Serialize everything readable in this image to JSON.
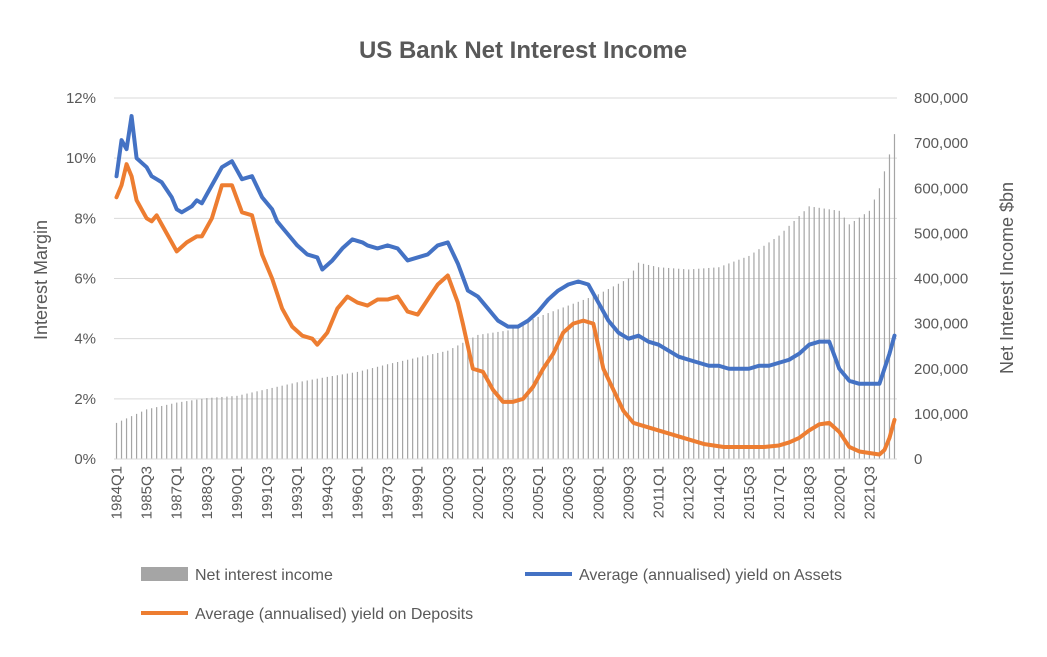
{
  "chart_data": {
    "type": "bar+line",
    "title": "US Bank Net Interest Income",
    "ylabel_left": "Interest Margin",
    "ylabel_right": "Net Interest Income $bn",
    "y_left_range": [
      0,
      12
    ],
    "y_left_ticks": [
      "0%",
      "2%",
      "4%",
      "6%",
      "8%",
      "10%",
      "12%"
    ],
    "y_right_range": [
      0,
      800000
    ],
    "y_right_ticks": [
      "0",
      "100,000",
      "200,000",
      "300,000",
      "400,000",
      "500,000",
      "600,000",
      "700,000",
      "800,000"
    ],
    "x_range": [
      "1984Q1",
      "2022Q4"
    ],
    "x_tick_labels": [
      "1984Q1",
      "1985Q3",
      "1987Q1",
      "1988Q3",
      "1990Q1",
      "1991Q3",
      "1993Q1",
      "1994Q3",
      "1996Q1",
      "1997Q3",
      "1999Q1",
      "2000Q3",
      "2002Q1",
      "2003Q3",
      "2005Q1",
      "2006Q3",
      "2008Q1",
      "2009Q3",
      "2011Q1",
      "2012Q3",
      "2014Q1",
      "2015Q3",
      "2017Q1",
      "2018Q3",
      "2020Q1",
      "2021Q3"
    ],
    "grid": true,
    "legend_position": "bottom",
    "series": [
      {
        "name": "Net interest income",
        "type": "bar",
        "axis": "right",
        "color": "#a5a5a5",
        "points": [
          [
            "1984Q1",
            80000
          ],
          [
            "1985Q3",
            110000
          ],
          [
            "1987Q1",
            125000
          ],
          [
            "1988Q3",
            135000
          ],
          [
            "1990Q1",
            140000
          ],
          [
            "1991Q3",
            155000
          ],
          [
            "1993Q1",
            170000
          ],
          [
            "1994Q3",
            182000
          ],
          [
            "1996Q1",
            193000
          ],
          [
            "1997Q3",
            210000
          ],
          [
            "1999Q1",
            225000
          ],
          [
            "2000Q3",
            240000
          ],
          [
            "2002Q1",
            275000
          ],
          [
            "2003Q3",
            285000
          ],
          [
            "2005Q1",
            315000
          ],
          [
            "2006Q3",
            340000
          ],
          [
            "2008Q1",
            365000
          ],
          [
            "2009Q3",
            400000
          ],
          [
            "2010Q1",
            435000
          ],
          [
            "2011Q1",
            425000
          ],
          [
            "2012Q3",
            420000
          ],
          [
            "2014Q1",
            425000
          ],
          [
            "2015Q3",
            450000
          ],
          [
            "2017Q1",
            495000
          ],
          [
            "2018Q3",
            560000
          ],
          [
            "2020Q1",
            550000
          ],
          [
            "2020Q3",
            520000
          ],
          [
            "2021Q3",
            550000
          ],
          [
            "2022Q1",
            600000
          ],
          [
            "2022Q3",
            675000
          ],
          [
            "2022Q4",
            720000
          ]
        ]
      },
      {
        "name": "Average (annualised) yield on Assets",
        "type": "line",
        "axis": "left",
        "color": "#4472c4",
        "points": [
          [
            "1984Q1",
            9.4
          ],
          [
            "1984Q2",
            10.6
          ],
          [
            "1984Q3",
            10.3
          ],
          [
            "1984Q4",
            11.4
          ],
          [
            "1985Q1",
            10.0
          ],
          [
            "1985Q3",
            9.7
          ],
          [
            "1985Q4",
            9.4
          ],
          [
            "1986Q2",
            9.2
          ],
          [
            "1986Q4",
            8.7
          ],
          [
            "1987Q1",
            8.3
          ],
          [
            "1987Q2",
            8.2
          ],
          [
            "1987Q4",
            8.4
          ],
          [
            "1988Q1",
            8.6
          ],
          [
            "1988Q2",
            8.5
          ],
          [
            "1988Q4",
            9.1
          ],
          [
            "1989Q2",
            9.7
          ],
          [
            "1989Q4",
            9.9
          ],
          [
            "1990Q2",
            9.3
          ],
          [
            "1990Q4",
            9.4
          ],
          [
            "1991Q2",
            8.7
          ],
          [
            "1991Q4",
            8.3
          ],
          [
            "1992Q1",
            7.9
          ],
          [
            "1992Q3",
            7.5
          ],
          [
            "1993Q1",
            7.1
          ],
          [
            "1993Q3",
            6.8
          ],
          [
            "1994Q1",
            6.7
          ],
          [
            "1994Q2",
            6.3
          ],
          [
            "1994Q4",
            6.6
          ],
          [
            "1995Q2",
            7.0
          ],
          [
            "1995Q4",
            7.3
          ],
          [
            "1996Q2",
            7.2
          ],
          [
            "1996Q3",
            7.1
          ],
          [
            "1997Q1",
            7.0
          ],
          [
            "1997Q3",
            7.1
          ],
          [
            "1998Q1",
            7.0
          ],
          [
            "1998Q3",
            6.6
          ],
          [
            "1999Q1",
            6.7
          ],
          [
            "1999Q3",
            6.8
          ],
          [
            "2000Q1",
            7.1
          ],
          [
            "2000Q3",
            7.2
          ],
          [
            "2001Q1",
            6.5
          ],
          [
            "2001Q3",
            5.6
          ],
          [
            "2002Q1",
            5.4
          ],
          [
            "2002Q3",
            5.0
          ],
          [
            "2003Q1",
            4.6
          ],
          [
            "2003Q3",
            4.4
          ],
          [
            "2004Q1",
            4.4
          ],
          [
            "2004Q3",
            4.6
          ],
          [
            "2005Q1",
            4.9
          ],
          [
            "2005Q3",
            5.3
          ],
          [
            "2006Q1",
            5.6
          ],
          [
            "2006Q3",
            5.8
          ],
          [
            "2007Q1",
            5.9
          ],
          [
            "2007Q3",
            5.8
          ],
          [
            "2008Q1",
            5.2
          ],
          [
            "2008Q3",
            4.6
          ],
          [
            "2009Q1",
            4.2
          ],
          [
            "2009Q3",
            4.0
          ],
          [
            "2010Q1",
            4.1
          ],
          [
            "2010Q3",
            3.9
          ],
          [
            "2011Q1",
            3.8
          ],
          [
            "2011Q3",
            3.6
          ],
          [
            "2012Q1",
            3.4
          ],
          [
            "2012Q3",
            3.3
          ],
          [
            "2013Q1",
            3.2
          ],
          [
            "2013Q3",
            3.1
          ],
          [
            "2014Q1",
            3.1
          ],
          [
            "2014Q3",
            3.0
          ],
          [
            "2015Q1",
            3.0
          ],
          [
            "2015Q3",
            3.0
          ],
          [
            "2016Q1",
            3.1
          ],
          [
            "2016Q3",
            3.1
          ],
          [
            "2017Q1",
            3.2
          ],
          [
            "2017Q3",
            3.3
          ],
          [
            "2018Q1",
            3.5
          ],
          [
            "2018Q3",
            3.8
          ],
          [
            "2019Q1",
            3.9
          ],
          [
            "2019Q3",
            3.9
          ],
          [
            "2020Q1",
            3.0
          ],
          [
            "2020Q3",
            2.6
          ],
          [
            "2021Q1",
            2.5
          ],
          [
            "2021Q3",
            2.5
          ],
          [
            "2022Q1",
            2.5
          ],
          [
            "2022Q2",
            3.0
          ],
          [
            "2022Q3",
            3.5
          ],
          [
            "2022Q4",
            4.1
          ]
        ]
      },
      {
        "name": "Average (annualised) yield on Deposits",
        "type": "line",
        "axis": "left",
        "color": "#ed7d31",
        "points": [
          [
            "1984Q1",
            8.7
          ],
          [
            "1984Q2",
            9.1
          ],
          [
            "1984Q3",
            9.8
          ],
          [
            "1984Q4",
            9.4
          ],
          [
            "1985Q1",
            8.6
          ],
          [
            "1985Q3",
            8.0
          ],
          [
            "1985Q4",
            7.9
          ],
          [
            "1986Q1",
            8.1
          ],
          [
            "1986Q3",
            7.5
          ],
          [
            "1987Q1",
            6.9
          ],
          [
            "1987Q3",
            7.2
          ],
          [
            "1988Q1",
            7.4
          ],
          [
            "1988Q2",
            7.4
          ],
          [
            "1988Q4",
            8.0
          ],
          [
            "1989Q2",
            9.1
          ],
          [
            "1989Q4",
            9.1
          ],
          [
            "1990Q2",
            8.2
          ],
          [
            "1990Q4",
            8.1
          ],
          [
            "1991Q2",
            6.8
          ],
          [
            "1991Q4",
            6.0
          ],
          [
            "1992Q2",
            5.0
          ],
          [
            "1992Q4",
            4.4
          ],
          [
            "1993Q2",
            4.1
          ],
          [
            "1993Q4",
            4.0
          ],
          [
            "1994Q1",
            3.8
          ],
          [
            "1994Q3",
            4.2
          ],
          [
            "1995Q1",
            5.0
          ],
          [
            "1995Q3",
            5.4
          ],
          [
            "1996Q1",
            5.2
          ],
          [
            "1996Q3",
            5.1
          ],
          [
            "1997Q1",
            5.3
          ],
          [
            "1997Q3",
            5.3
          ],
          [
            "1998Q1",
            5.4
          ],
          [
            "1998Q3",
            4.9
          ],
          [
            "1999Q1",
            4.8
          ],
          [
            "1999Q3",
            5.3
          ],
          [
            "2000Q1",
            5.8
          ],
          [
            "2000Q3",
            6.1
          ],
          [
            "2001Q1",
            5.2
          ],
          [
            "2001Q2",
            4.5
          ],
          [
            "2001Q4",
            3.0
          ],
          [
            "2002Q2",
            2.9
          ],
          [
            "2002Q4",
            2.3
          ],
          [
            "2003Q2",
            1.9
          ],
          [
            "2003Q4",
            1.9
          ],
          [
            "2004Q2",
            2.0
          ],
          [
            "2004Q4",
            2.4
          ],
          [
            "2005Q2",
            3.0
          ],
          [
            "2005Q4",
            3.5
          ],
          [
            "2006Q2",
            4.2
          ],
          [
            "2006Q4",
            4.5
          ],
          [
            "2007Q2",
            4.6
          ],
          [
            "2007Q4",
            4.5
          ],
          [
            "2008Q2",
            3.0
          ],
          [
            "2008Q4",
            2.3
          ],
          [
            "2009Q2",
            1.6
          ],
          [
            "2009Q4",
            1.2
          ],
          [
            "2010Q2",
            1.1
          ],
          [
            "2010Q4",
            1.0
          ],
          [
            "2011Q2",
            0.9
          ],
          [
            "2011Q4",
            0.8
          ],
          [
            "2012Q2",
            0.7
          ],
          [
            "2012Q4",
            0.6
          ],
          [
            "2013Q2",
            0.5
          ],
          [
            "2013Q4",
            0.45
          ],
          [
            "2014Q2",
            0.4
          ],
          [
            "2015Q2",
            0.4
          ],
          [
            "2016Q2",
            0.4
          ],
          [
            "2017Q1",
            0.45
          ],
          [
            "2017Q3",
            0.55
          ],
          [
            "2018Q1",
            0.7
          ],
          [
            "2018Q3",
            0.95
          ],
          [
            "2019Q1",
            1.15
          ],
          [
            "2019Q3",
            1.2
          ],
          [
            "2020Q1",
            0.9
          ],
          [
            "2020Q3",
            0.4
          ],
          [
            "2021Q1",
            0.25
          ],
          [
            "2021Q3",
            0.2
          ],
          [
            "2022Q1",
            0.15
          ],
          [
            "2022Q2",
            0.3
          ],
          [
            "2022Q3",
            0.7
          ],
          [
            "2022Q4",
            1.3
          ]
        ]
      }
    ]
  }
}
